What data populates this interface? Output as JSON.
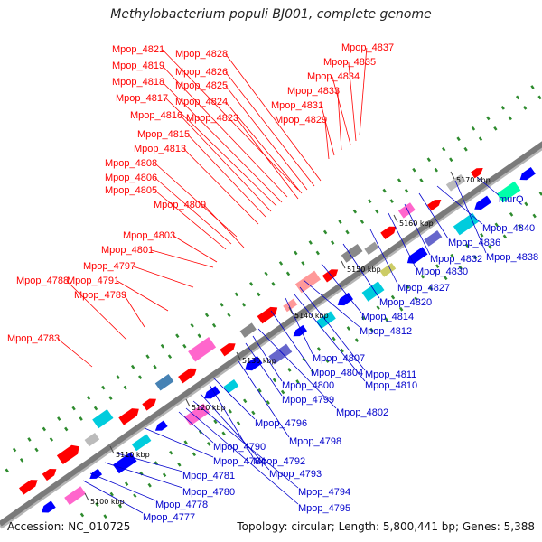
{
  "title": "Methylobacterium populi BJ001, complete genome",
  "footer": {
    "accession": "Accession: NC_010725",
    "summary": "Topology: circular; Length: 5,800,441 bp; Genes: 5,388"
  },
  "colors": {
    "upper_label": "#ff0000",
    "lower_label": "#0000cc",
    "backbone": "#7a7a7a",
    "tick": "#2e8b2e"
  },
  "kbp_marks": [
    "5100 kbp",
    "5110 kbp",
    "5120 kbp",
    "5130 kbp",
    "5140 kbp",
    "5150 kbp",
    "5160 kbp",
    "5170 kbp"
  ],
  "upper_labels": [
    "Mpop_4821",
    "Mpop_4828",
    "Mpop_4819",
    "Mpop_4826",
    "Mpop_4818",
    "Mpop_4825",
    "Mpop_4817",
    "Mpop_4824",
    "Mpop_4816",
    "Mpop_4823",
    "Mpop_4815",
    "Mpop_4813",
    "Mpop_4808",
    "Mpop_4806",
    "Mpop_4805",
    "Mpop_4809",
    "Mpop_4803",
    "Mpop_4801",
    "Mpop_4797",
    "Mpop_4788",
    "Mpop_4791",
    "Mpop_4789",
    "Mpop_4783",
    "Mpop_4837",
    "Mpop_4835",
    "Mpop_4834",
    "Mpop_4833",
    "Mpop_4831",
    "Mpop_4829"
  ],
  "lower_labels": [
    "murQ",
    "Mpop_4840",
    "Mpop_4836",
    "Mpop_4838",
    "Mpop_4832",
    "Mpop_4830",
    "Mpop_4827",
    "Mpop_4820",
    "Mpop_4814",
    "Mpop_4812",
    "Mpop_4807",
    "Mpop_4804",
    "Mpop_4811",
    "Mpop_4810",
    "Mpop_4800",
    "Mpop_4799",
    "Mpop_4802",
    "Mpop_4796",
    "Mpop_4798",
    "Mpop_4790",
    "Mpop_4792",
    "Mpop_4784",
    "Mpop_4793",
    "Mpop_4781",
    "Mpop_4794",
    "Mpop_4780",
    "Mpop_4795",
    "Mpop_4778",
    "Mpop_4777"
  ]
}
